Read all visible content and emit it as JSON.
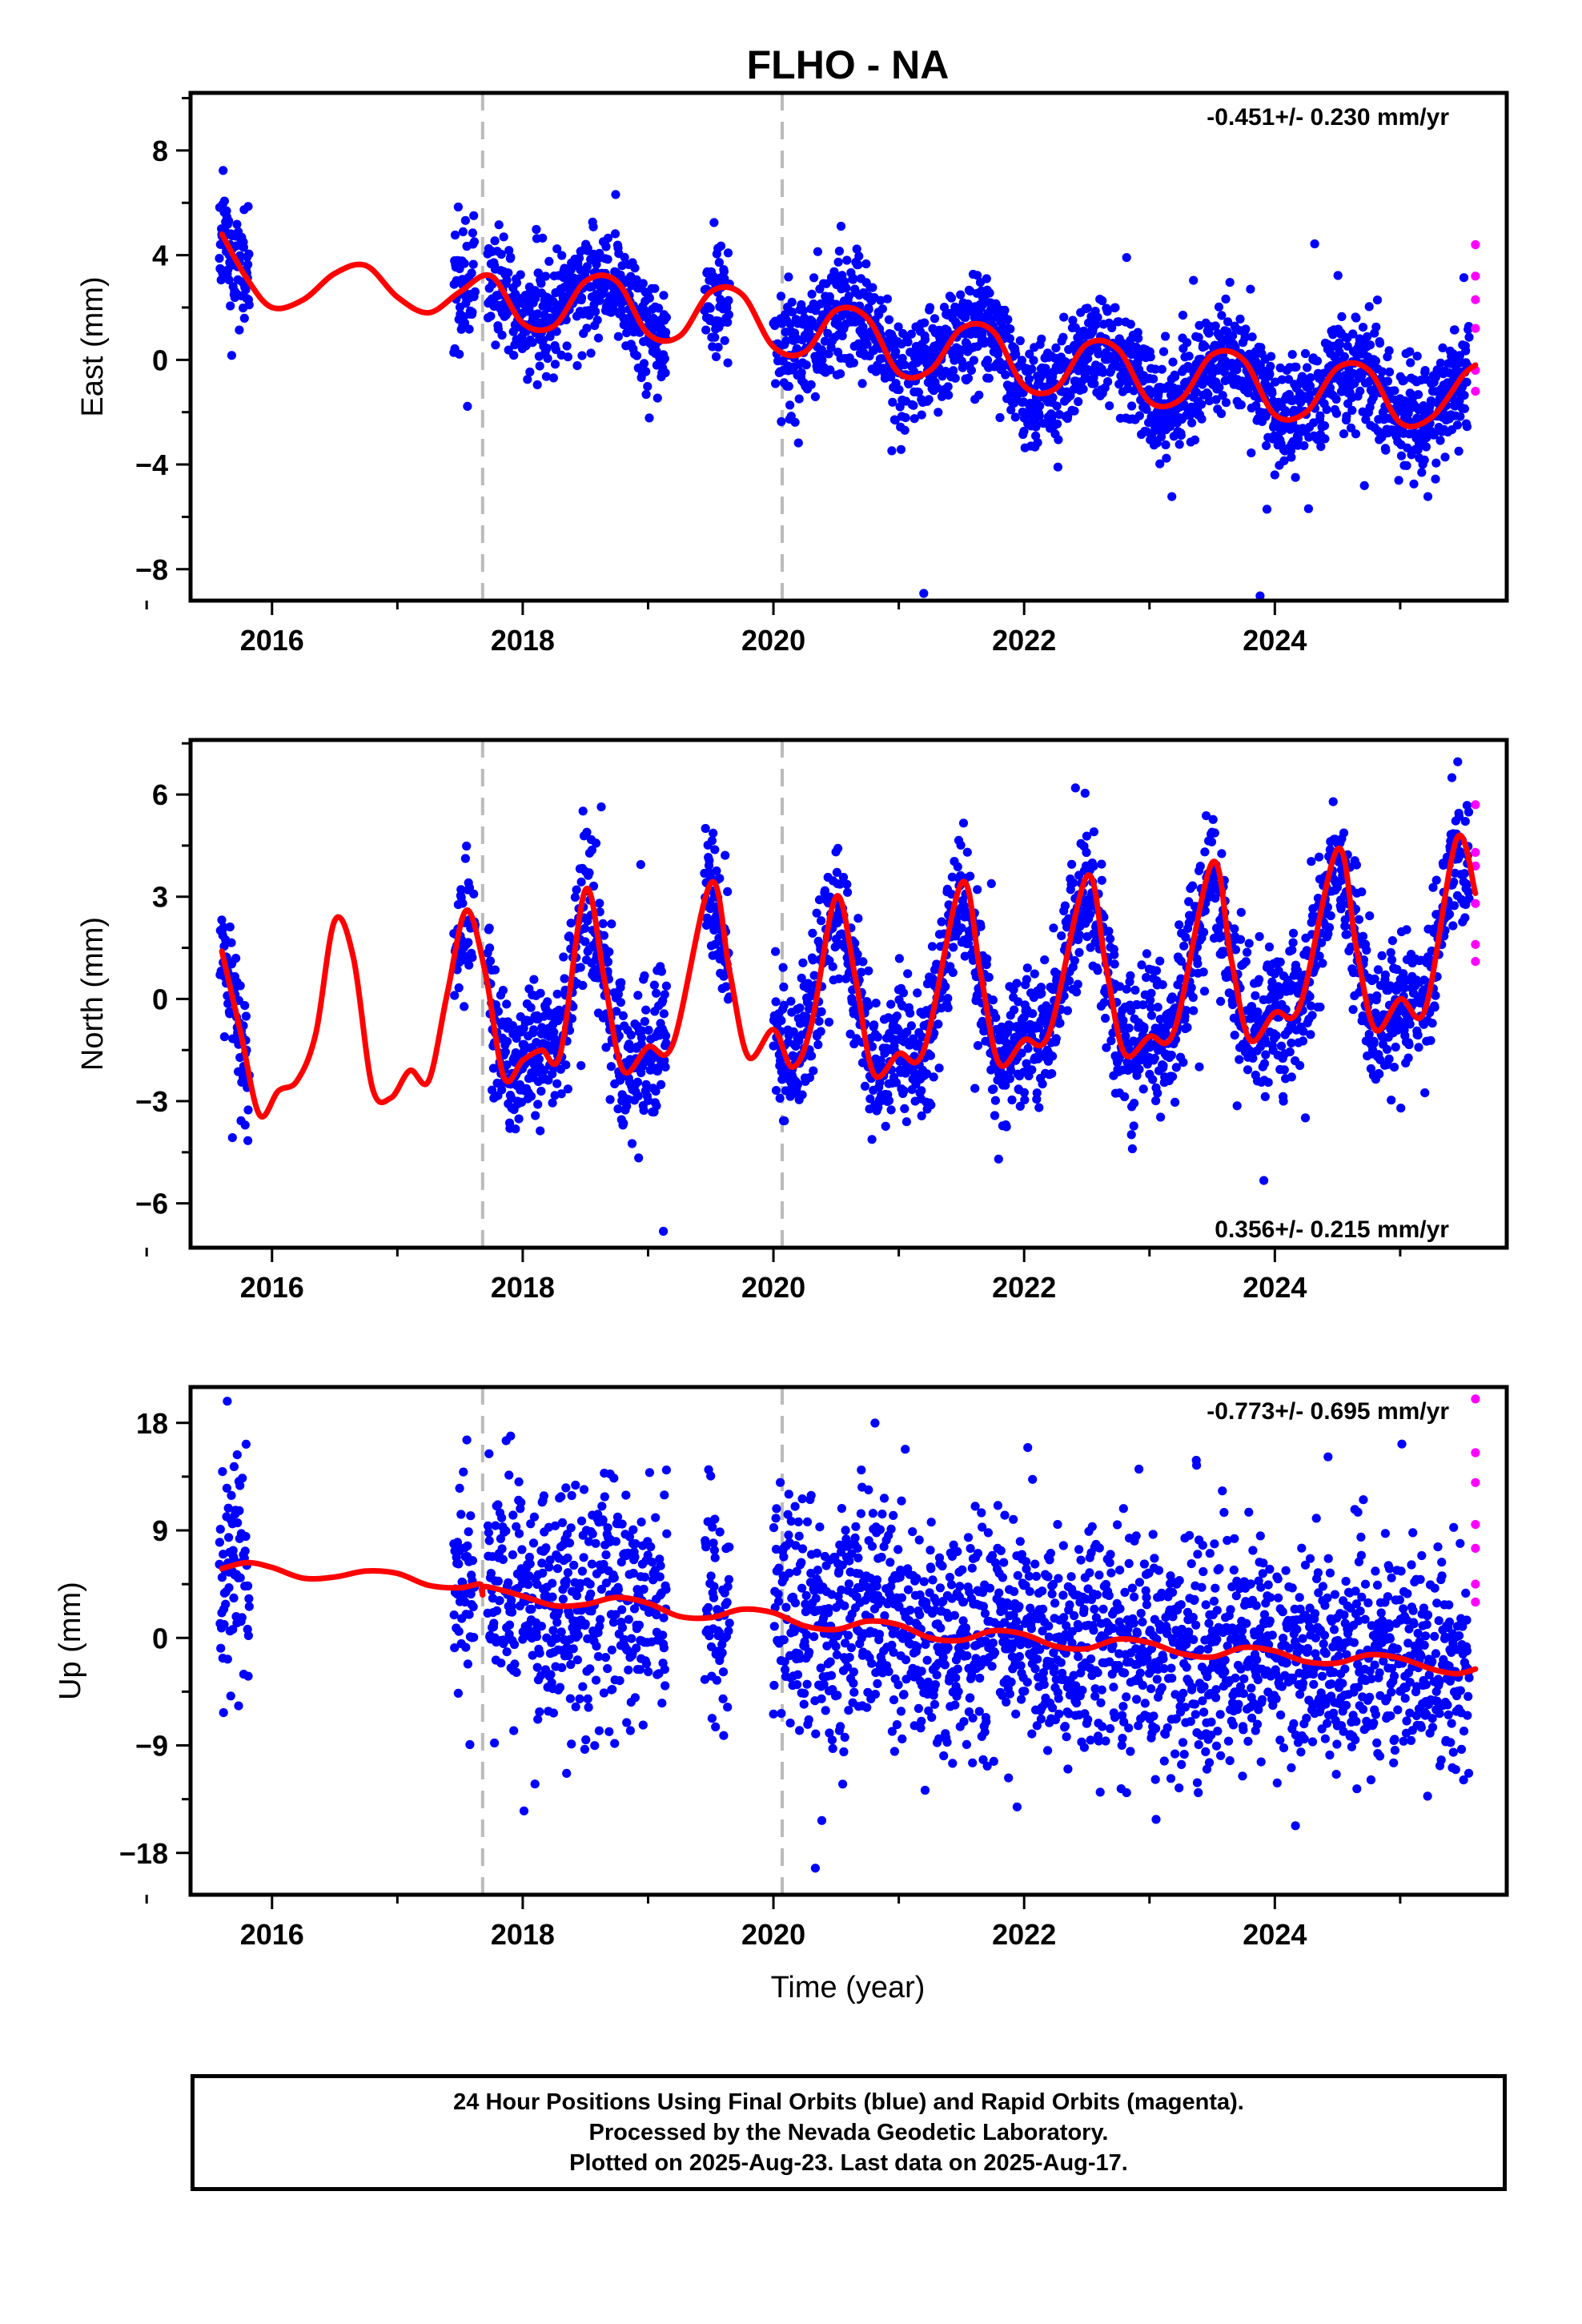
{
  "title": "FLHO - NA",
  "xlabel": "Time (year)",
  "footer": {
    "line1": "24 Hour Positions Using Final Orbits (blue) and Rapid Orbits (magenta).",
    "line2": "Processed by the Nevada Geodetic Laboratory.",
    "line3": "Plotted on 2025-Aug-23. Last data on 2025-Aug-17."
  },
  "colors": {
    "final": "#0000ff",
    "rapid": "#ff00ff",
    "model": "#ff0000",
    "event_line": "#bbbbbb"
  },
  "chart_data": [
    {
      "type": "scatter",
      "ylabel": "East (mm)",
      "rate": "-0.451+/- 0.230 mm/yr",
      "xlim": [
        2015.35,
        2025.85
      ],
      "ylim": [
        -9.2,
        10.2
      ],
      "xticks": [
        2016,
        2018,
        2020,
        2022,
        2024
      ],
      "yticks": [
        -8,
        -4,
        0,
        4,
        8
      ],
      "event_lines": [
        2017.68,
        2020.07
      ],
      "data_segments": [
        [
          2015.58,
          2015.82
        ],
        [
          2017.45,
          2017.62
        ],
        [
          2017.72,
          2019.15
        ],
        [
          2019.45,
          2019.65
        ],
        [
          2020.0,
          2025.55
        ]
      ],
      "trend": {
        "start": 2015.6,
        "end": 2025.6,
        "offset": 4.8,
        "annual_amp": 1.4,
        "annual_phase": 0.1,
        "semi_amp": 0.4,
        "semi_phase": 1.1
      },
      "model_curve": [
        [
          2015.6,
          4.8
        ],
        [
          2015.8,
          3.1
        ],
        [
          2016.0,
          2.0
        ],
        [
          2016.25,
          2.3
        ],
        [
          2016.5,
          3.3
        ],
        [
          2016.75,
          3.6
        ],
        [
          2017.0,
          2.4
        ],
        [
          2017.25,
          1.8
        ],
        [
          2017.5,
          2.6
        ],
        [
          2017.75,
          3.2
        ],
        [
          2018.0,
          1.4
        ],
        [
          2018.25,
          1.3
        ],
        [
          2018.5,
          3.0
        ],
        [
          2018.75,
          3.0
        ],
        [
          2019.0,
          1.0
        ],
        [
          2019.25,
          0.9
        ],
        [
          2019.5,
          2.6
        ],
        [
          2019.75,
          2.5
        ],
        [
          2020.0,
          0.5
        ],
        [
          2020.25,
          0.3
        ],
        [
          2020.5,
          1.9
        ],
        [
          2020.75,
          1.6
        ],
        [
          2021.0,
          -0.5
        ],
        [
          2021.25,
          -0.4
        ],
        [
          2021.5,
          1.2
        ],
        [
          2021.75,
          1.1
        ],
        [
          2022.0,
          -1.0
        ],
        [
          2022.25,
          -1.1
        ],
        [
          2022.5,
          0.6
        ],
        [
          2022.75,
          0.4
        ],
        [
          2023.0,
          -1.6
        ],
        [
          2023.25,
          -1.5
        ],
        [
          2023.5,
          0.2
        ],
        [
          2023.75,
          0.0
        ],
        [
          2024.0,
          -2.1
        ],
        [
          2024.25,
          -2.0
        ],
        [
          2024.5,
          -0.3
        ],
        [
          2024.75,
          -0.4
        ],
        [
          2025.0,
          -2.4
        ],
        [
          2025.25,
          -2.2
        ],
        [
          2025.5,
          -0.6
        ],
        [
          2025.6,
          -0.2
        ]
      ],
      "noise": 1.05,
      "seed": 11,
      "rapid": [
        [
          2025.6,
          4.4
        ],
        [
          2025.6,
          3.2
        ],
        [
          2025.6,
          2.3
        ],
        [
          2025.6,
          1.2
        ],
        [
          2025.6,
          -0.4
        ],
        [
          2025.6,
          -1.2
        ]
      ]
    },
    {
      "type": "scatter",
      "ylabel": "North (mm)",
      "rate": "0.356+/- 0.215 mm/yr",
      "xlim": [
        2015.35,
        2025.85
      ],
      "ylim": [
        -7.3,
        7.6
      ],
      "xticks": [
        2016,
        2018,
        2020,
        2022,
        2024
      ],
      "yticks": [
        -6,
        -3,
        0,
        3,
        6
      ],
      "event_lines": [
        2017.68,
        2020.07
      ],
      "data_segments": [
        [
          2015.58,
          2015.82
        ],
        [
          2017.45,
          2017.62
        ],
        [
          2017.72,
          2019.15
        ],
        [
          2019.45,
          2019.65
        ],
        [
          2020.0,
          2025.55
        ]
      ],
      "model_curve": [
        [
          2015.6,
          1.4
        ],
        [
          2015.75,
          -1.0
        ],
        [
          2015.9,
          -3.4
        ],
        [
          2016.05,
          -2.7
        ],
        [
          2016.2,
          -2.4
        ],
        [
          2016.35,
          -1.0
        ],
        [
          2016.5,
          2.3
        ],
        [
          2016.65,
          1.2
        ],
        [
          2016.8,
          -2.6
        ],
        [
          2016.95,
          -2.9
        ],
        [
          2017.1,
          -2.1
        ],
        [
          2017.25,
          -2.4
        ],
        [
          2017.4,
          0.2
        ],
        [
          2017.55,
          2.6
        ],
        [
          2017.7,
          0.8
        ],
        [
          2017.85,
          -2.3
        ],
        [
          2018.0,
          -1.8
        ],
        [
          2018.15,
          -1.5
        ],
        [
          2018.3,
          -1.6
        ],
        [
          2018.5,
          3.2
        ],
        [
          2018.65,
          0.6
        ],
        [
          2018.8,
          -2.1
        ],
        [
          2019.0,
          -1.4
        ],
        [
          2019.2,
          -1.3
        ],
        [
          2019.5,
          3.4
        ],
        [
          2019.65,
          0.8
        ],
        [
          2019.8,
          -1.7
        ],
        [
          2020.0,
          -0.9
        ],
        [
          2020.15,
          -2.0
        ],
        [
          2020.3,
          -0.8
        ],
        [
          2020.5,
          3.0
        ],
        [
          2020.65,
          0.7
        ],
        [
          2020.8,
          -2.2
        ],
        [
          2021.0,
          -1.6
        ],
        [
          2021.2,
          -1.5
        ],
        [
          2021.5,
          3.4
        ],
        [
          2021.65,
          0.8
        ],
        [
          2021.8,
          -1.9
        ],
        [
          2022.0,
          -1.2
        ],
        [
          2022.2,
          -1.0
        ],
        [
          2022.5,
          3.6
        ],
        [
          2022.65,
          1.0
        ],
        [
          2022.8,
          -1.6
        ],
        [
          2023.0,
          -1.1
        ],
        [
          2023.2,
          -0.9
        ],
        [
          2023.5,
          4.0
        ],
        [
          2023.65,
          1.2
        ],
        [
          2023.8,
          -1.2
        ],
        [
          2024.0,
          -0.4
        ],
        [
          2024.2,
          -0.2
        ],
        [
          2024.5,
          4.4
        ],
        [
          2024.65,
          1.5
        ],
        [
          2024.8,
          -0.9
        ],
        [
          2025.0,
          0.0
        ],
        [
          2025.2,
          -0.3
        ],
        [
          2025.45,
          4.7
        ],
        [
          2025.6,
          3.1
        ]
      ],
      "noise": 1.0,
      "seed": 23,
      "rapid": [
        [
          2025.6,
          5.7
        ],
        [
          2025.6,
          4.3
        ],
        [
          2025.6,
          3.9
        ],
        [
          2025.6,
          2.8
        ],
        [
          2025.6,
          1.6
        ],
        [
          2025.6,
          1.1
        ]
      ]
    },
    {
      "type": "scatter",
      "ylabel": "Up (mm)",
      "rate": "-0.773+/- 0.695 mm/yr",
      "xlim": [
        2015.35,
        2025.85
      ],
      "ylim": [
        -21.5,
        21.0
      ],
      "xticks": [
        2016,
        2018,
        2020,
        2022,
        2024
      ],
      "yticks": [
        -18,
        -9,
        0,
        9,
        18
      ],
      "event_lines": [
        2017.68,
        2020.07
      ],
      "data_segments": [
        [
          2015.58,
          2015.82
        ],
        [
          2017.45,
          2017.62
        ],
        [
          2017.72,
          2019.15
        ],
        [
          2019.45,
          2019.65
        ],
        [
          2020.0,
          2025.55
        ]
      ],
      "model_curve": [
        [
          2015.6,
          5.8
        ],
        [
          2015.8,
          6.3
        ],
        [
          2016.0,
          5.9
        ],
        [
          2016.25,
          5.0
        ],
        [
          2016.5,
          5.1
        ],
        [
          2016.75,
          5.6
        ],
        [
          2017.0,
          5.4
        ],
        [
          2017.25,
          4.4
        ],
        [
          2017.5,
          4.2
        ],
        [
          2017.66,
          4.5
        ],
        [
          2017.68,
          3.6
        ],
        [
          2017.7,
          4.3
        ],
        [
          2018.0,
          3.5
        ],
        [
          2018.25,
          2.7
        ],
        [
          2018.5,
          2.8
        ],
        [
          2018.75,
          3.4
        ],
        [
          2019.0,
          2.9
        ],
        [
          2019.25,
          1.8
        ],
        [
          2019.5,
          1.7
        ],
        [
          2019.75,
          2.4
        ],
        [
          2020.0,
          2.1
        ],
        [
          2020.25,
          1.0
        ],
        [
          2020.5,
          0.7
        ],
        [
          2020.75,
          1.4
        ],
        [
          2021.0,
          1.1
        ],
        [
          2021.25,
          0.0
        ],
        [
          2021.5,
          -0.2
        ],
        [
          2021.75,
          0.6
        ],
        [
          2022.0,
          0.3
        ],
        [
          2022.25,
          -0.7
        ],
        [
          2022.5,
          -0.9
        ],
        [
          2022.75,
          -0.1
        ],
        [
          2023.0,
          -0.4
        ],
        [
          2023.25,
          -1.3
        ],
        [
          2023.5,
          -1.6
        ],
        [
          2023.75,
          -0.8
        ],
        [
          2024.0,
          -1.1
        ],
        [
          2024.25,
          -2.0
        ],
        [
          2024.5,
          -2.1
        ],
        [
          2024.75,
          -1.4
        ],
        [
          2025.0,
          -1.7
        ],
        [
          2025.25,
          -2.6
        ],
        [
          2025.45,
          -3.0
        ],
        [
          2025.6,
          -2.6
        ]
      ],
      "noise": 4.8,
      "seed": 37,
      "rapid": [
        [
          2025.6,
          20.0
        ],
        [
          2025.6,
          15.5
        ],
        [
          2025.6,
          13.0
        ],
        [
          2025.6,
          9.5
        ],
        [
          2025.6,
          7.5
        ],
        [
          2025.6,
          4.5
        ],
        [
          2025.6,
          3.0
        ]
      ]
    }
  ]
}
